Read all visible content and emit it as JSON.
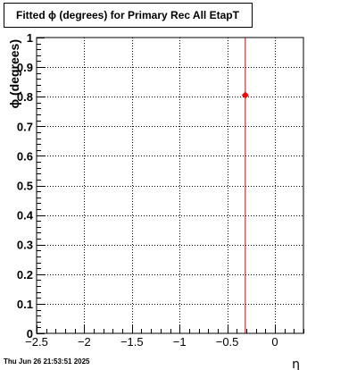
{
  "chart_data": {
    "type": "scatter",
    "title": "Fitted ϕ (degrees) for Primary Rec All EtapT",
    "xlabel": "η",
    "ylabel": "ϕ (degrees)",
    "xlim": [
      -2.5,
      0.3
    ],
    "ylim": [
      0,
      1
    ],
    "xticks": [
      -2.5,
      -2,
      -1.5,
      -1,
      -0.5,
      0
    ],
    "xtick_labels": [
      "−2.5",
      "−2",
      "−1.5",
      "−1",
      "−0.5",
      "0"
    ],
    "yticks": [
      0,
      0.1,
      0.2,
      0.3,
      0.4,
      0.5,
      0.6,
      0.7,
      0.8,
      0.9,
      1
    ],
    "ytick_labels": [
      "0",
      "0.1",
      "0.2",
      "0.3",
      "0.4",
      "0.5",
      "0.6",
      "0.7",
      "0.8",
      "0.9",
      "1"
    ],
    "grid": true,
    "series": [
      {
        "points": [
          {
            "x": -0.31,
            "y": 0.805
          }
        ],
        "color": "#ff0000",
        "error_bar_color": "#cc0000"
      }
    ],
    "timestamp": "Thu Jun 26 21:53:51 2025"
  }
}
